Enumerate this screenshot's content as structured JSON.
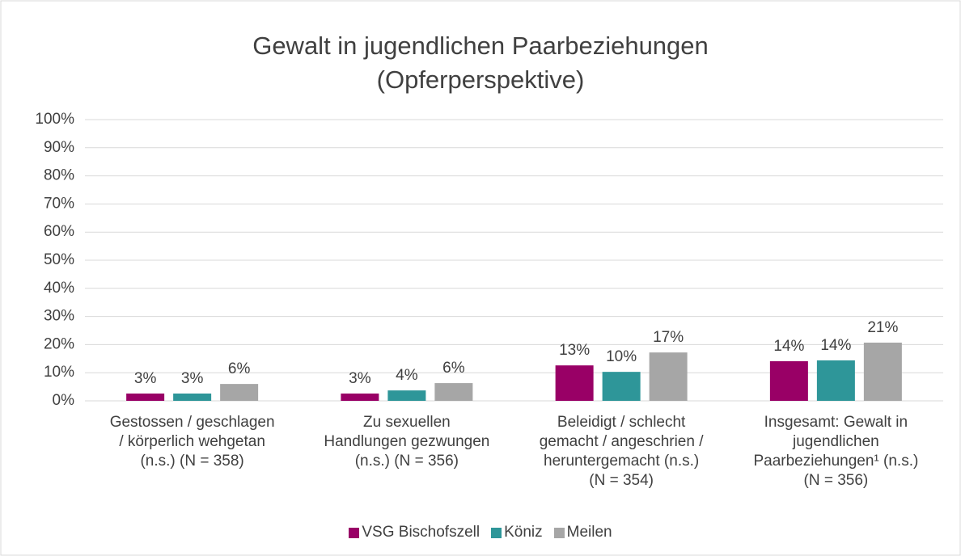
{
  "chart_data": {
    "type": "bar",
    "title": "Gewalt in jugendlichen Paarbeziehungen\n(Opferperspektive)",
    "categories": [
      "Gestossen / geschlagen\n/ körperlich wehgetan\n(n.s.) (N = 358)",
      "Zu sexuellen\nHandlungen gezwungen\n(n.s.) (N = 356)",
      "Beleidigt / schlecht\ngemacht / angeschrien /\nheruntergemacht (n.s.)\n(N = 354)",
      "Insgesamt: Gewalt in\njugendlichen\nPaarbeziehungen¹ (n.s.)\n(N = 356)"
    ],
    "series": [
      {
        "name": "VSG Bischofszell",
        "color": "#990066",
        "values": [
          2.6,
          2.6,
          12.6,
          14.1
        ],
        "value_labels": [
          "3%",
          "3%",
          "13%",
          "14%"
        ]
      },
      {
        "name": "Köniz",
        "color": "#2e9699",
        "values": [
          2.6,
          3.7,
          10.3,
          14.4
        ],
        "value_labels": [
          "3%",
          "4%",
          "10%",
          "14%"
        ]
      },
      {
        "name": "Meilen",
        "color": "#a6a6a6",
        "values": [
          6.0,
          6.3,
          17.2,
          20.7
        ],
        "value_labels": [
          "6%",
          "6%",
          "17%",
          "21%"
        ]
      }
    ],
    "ylim": [
      0,
      100
    ],
    "yticks": [
      {
        "value": 0,
        "label": "0%"
      },
      {
        "value": 10,
        "label": "10%"
      },
      {
        "value": 20,
        "label": "20%"
      },
      {
        "value": 30,
        "label": "30%"
      },
      {
        "value": 40,
        "label": "40%"
      },
      {
        "value": 50,
        "label": "50%"
      },
      {
        "value": 60,
        "label": "60%"
      },
      {
        "value": 70,
        "label": "70%"
      },
      {
        "value": 80,
        "label": "80%"
      },
      {
        "value": 90,
        "label": "90%"
      },
      {
        "value": 100,
        "label": "100%"
      }
    ],
    "grid": true,
    "legend": "bottom"
  }
}
